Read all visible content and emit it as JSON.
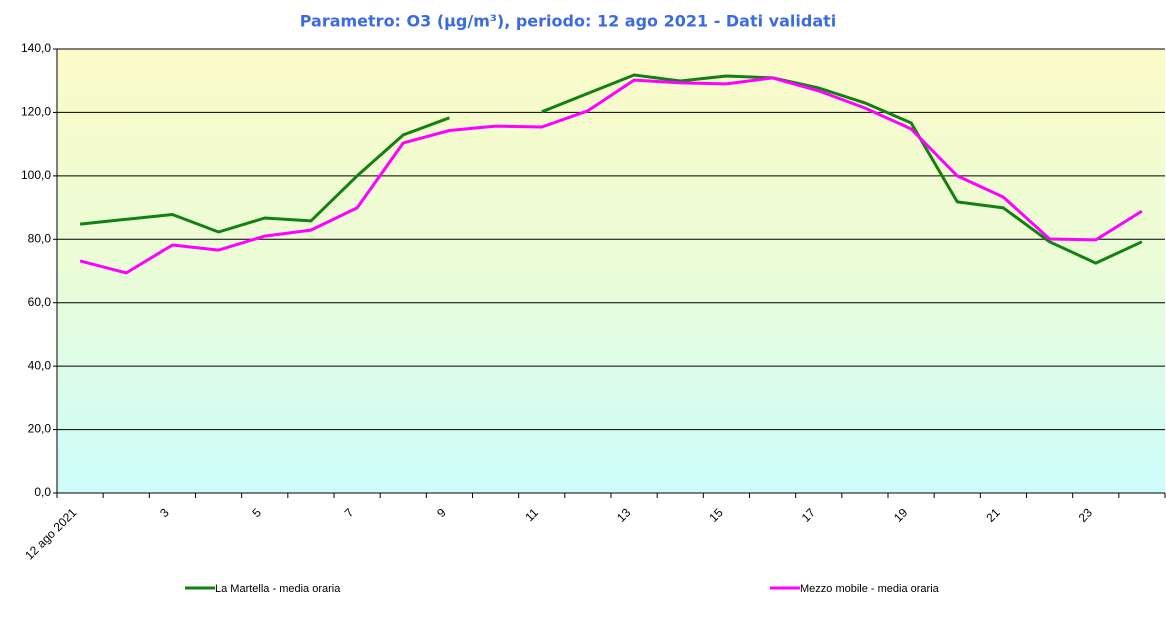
{
  "chart_data": {
    "type": "line",
    "title": "Parametro: O3 (µg/m³), periodo: 12 ago 2021 - Dati validati",
    "categories": [
      "12 ago 2021",
      null,
      "3",
      null,
      "5",
      null,
      "7",
      null,
      "9",
      null,
      "11",
      null,
      "13",
      null,
      "15",
      null,
      "17",
      null,
      "19",
      null,
      "21",
      null,
      "23",
      null
    ],
    "series": [
      {
        "name": "La Martella - media oraria",
        "color": "#128012",
        "values": [
          84.8,
          86.3,
          87.8,
          82.3,
          86.7,
          85.8,
          100,
          112.9,
          118.3,
          null,
          120.2,
          126,
          131.8,
          129.9,
          131.5,
          130.9,
          127.7,
          123,
          116.7,
          91.8,
          89.9,
          79.2,
          72.5,
          79.2
        ]
      },
      {
        "name": "Mezzo mobile - media oraria",
        "color": "#ff00ff",
        "values": [
          73.2,
          69.4,
          78.2,
          76.6,
          81,
          82.9,
          89.9,
          110.4,
          114.3,
          115.7,
          115.4,
          120.5,
          130.2,
          129.3,
          129,
          130.9,
          126.8,
          121.4,
          114.8,
          100,
          93.3,
          80.1,
          79.8,
          88.9
        ]
      }
    ],
    "ylim": [
      0,
      140
    ],
    "yticks": [
      {
        "value": 0,
        "label": "0,0"
      },
      {
        "value": 20,
        "label": "20,0"
      },
      {
        "value": 40,
        "label": "40,0"
      },
      {
        "value": 60,
        "label": "60,0"
      },
      {
        "value": 80,
        "label": "80,0"
      },
      {
        "value": 100,
        "label": "100,0"
      },
      {
        "value": 120,
        "label": "120,0"
      },
      {
        "value": 140,
        "label": "140,0"
      }
    ],
    "grid": true
  }
}
